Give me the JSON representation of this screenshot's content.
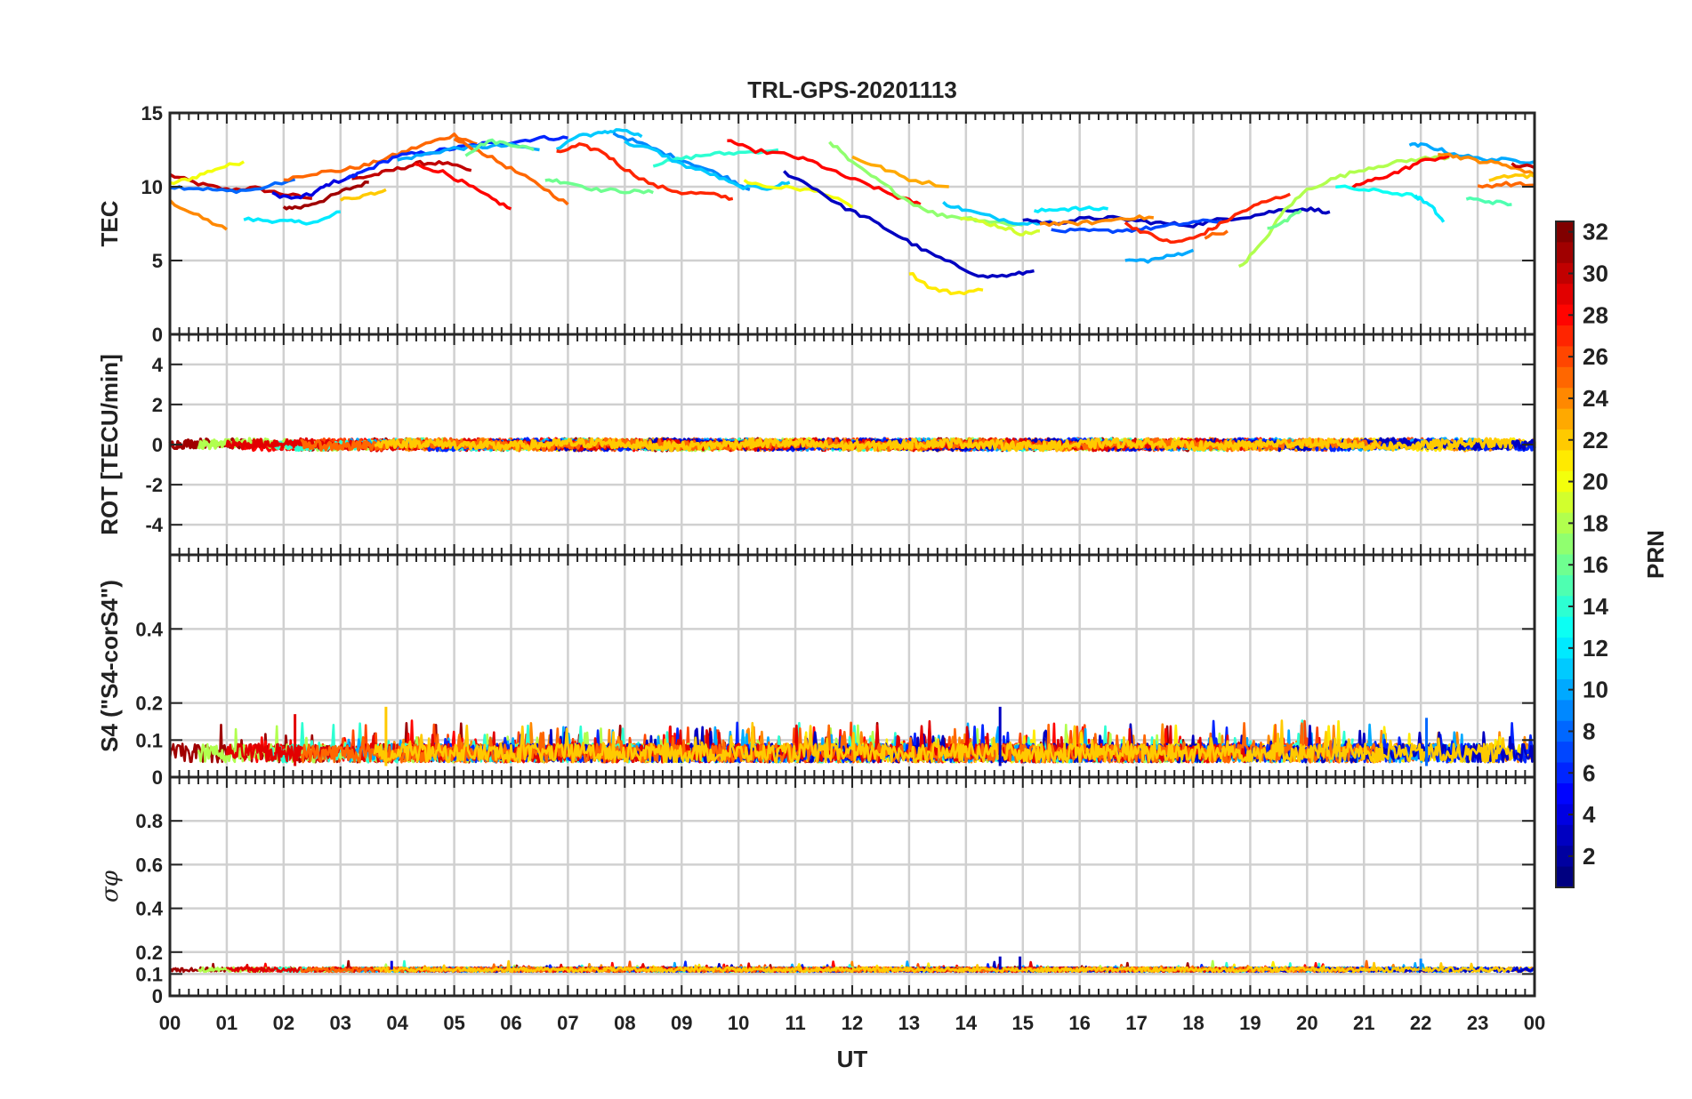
{
  "chart_data": {
    "type": "line",
    "title": "TRL-GPS-20201113",
    "xlabel": "UT",
    "x_tick_labels": [
      "00",
      "01",
      "02",
      "03",
      "04",
      "05",
      "06",
      "07",
      "08",
      "09",
      "10",
      "11",
      "12",
      "13",
      "14",
      "15",
      "16",
      "17",
      "18",
      "19",
      "20",
      "21",
      "22",
      "23",
      "00"
    ],
    "xlim": [
      0,
      24
    ],
    "colorbar": {
      "label": "PRN",
      "range": [
        1,
        32
      ],
      "tick_labels": [
        "2",
        "4",
        "6",
        "8",
        "10",
        "12",
        "14",
        "16",
        "18",
        "20",
        "22",
        "24",
        "26",
        "28",
        "30",
        "32"
      ]
    },
    "panels": [
      {
        "id": "tec",
        "ylabel": "TEC",
        "ylim": [
          0,
          15
        ],
        "y_ticks": [
          0,
          5,
          10,
          15
        ],
        "y_tick_labels": [
          "0",
          "5",
          "10",
          "15"
        ],
        "series": [
          {
            "prn": 30,
            "x": [
              0,
              0.5,
              1.0,
              1.5,
              2.0,
              2.5
            ],
            "y": [
              10.8,
              10.2,
              9.8,
              9.9,
              9.5,
              9.2
            ]
          },
          {
            "prn": 24,
            "x": [
              0,
              0.5,
              1.0
            ],
            "y": [
              9.0,
              8.0,
              7.1
            ]
          },
          {
            "prn": 20,
            "x": [
              0,
              0.4,
              0.8,
              1.3
            ],
            "y": [
              10.2,
              10.6,
              11.2,
              11.7
            ]
          },
          {
            "prn": 8,
            "x": [
              0,
              0.5,
              1.0,
              1.5,
              2.2
            ],
            "y": [
              10.0,
              9.9,
              9.7,
              9.8,
              10.5
            ]
          },
          {
            "prn": 4,
            "x": [
              1.8,
              2.2,
              2.5,
              2.8,
              3.3
            ],
            "y": [
              9.5,
              9.2,
              9.5,
              10.2,
              10.8
            ]
          },
          {
            "prn": 12,
            "x": [
              1.3,
              1.8,
              2.2,
              2.6,
              3.0
            ],
            "y": [
              7.8,
              7.7,
              7.6,
              7.6,
              8.3
            ]
          },
          {
            "prn": 31,
            "x": [
              2.0,
              2.3,
              2.7,
              3.1,
              3.5
            ],
            "y": [
              8.6,
              8.6,
              9.1,
              9.8,
              10.3
            ]
          },
          {
            "prn": 25,
            "x": [
              2.0,
              2.5,
              3.0,
              3.5,
              4.0,
              4.5,
              5.0,
              5.4
            ],
            "y": [
              10.5,
              10.9,
              11.1,
              11.5,
              12.2,
              12.9,
              13.5,
              12.9
            ]
          },
          {
            "prn": 30,
            "x": [
              3.2,
              3.6,
              4.0,
              4.4,
              4.8,
              5.3
            ],
            "y": [
              10.5,
              10.8,
              11.2,
              11.6,
              11.6,
              11.1
            ]
          },
          {
            "prn": 6,
            "x": [
              3.1,
              3.5,
              4.0,
              4.5,
              5.0,
              5.5,
              6.0,
              6.5,
              7.0
            ],
            "y": [
              10.5,
              11.2,
              12.1,
              12.3,
              12.6,
              12.9,
              13.0,
              13.3,
              13.3
            ]
          },
          {
            "prn": 10,
            "x": [
              4.0,
              4.5,
              5.0,
              5.5,
              6.0,
              6.5
            ],
            "y": [
              11.8,
              12.2,
              12.6,
              12.7,
              12.8,
              12.5
            ]
          },
          {
            "prn": 28,
            "x": [
              4.3,
              4.8,
              5.2,
              5.6,
              6.0
            ],
            "y": [
              11.5,
              11.0,
              10.2,
              9.3,
              8.5
            ]
          },
          {
            "prn": 25,
            "x": [
              5.0,
              5.5,
              6.0,
              6.5,
              7.0
            ],
            "y": [
              13.2,
              12.3,
              11.2,
              10.1,
              8.8
            ]
          },
          {
            "prn": 22,
            "x": [
              3.0,
              3.4,
              3.8
            ],
            "y": [
              9.1,
              9.4,
              9.8
            ]
          },
          {
            "prn": 16,
            "x": [
              5.2,
              5.6,
              6.0,
              6.4
            ],
            "y": [
              12.2,
              13.1,
              12.9,
              12.5
            ]
          },
          {
            "prn": 16,
            "x": [
              6.6,
              7.0,
              7.5,
              8.0,
              8.5
            ],
            "y": [
              10.5,
              10.3,
              9.8,
              9.7,
              9.6
            ]
          },
          {
            "prn": 11,
            "x": [
              6.8,
              7.2,
              7.6,
              7.9,
              8.3
            ],
            "y": [
              12.6,
              13.5,
              13.6,
              13.9,
              13.4
            ]
          },
          {
            "prn": 27,
            "x": [
              6.8,
              7.2,
              7.6,
              8.0,
              8.5,
              9.0,
              9.5,
              9.9
            ],
            "y": [
              12.3,
              12.8,
              12.4,
              11.2,
              10.1,
              9.6,
              9.5,
              9.2
            ]
          },
          {
            "prn": 9,
            "x": [
              7.8,
              8.3,
              8.8,
              9.3,
              9.8,
              10.2
            ],
            "y": [
              13.6,
              12.9,
              12.1,
              11.4,
              10.6,
              9.8
            ]
          },
          {
            "prn": 14,
            "x": [
              8.5,
              9.0,
              9.5,
              10.0,
              10.7
            ],
            "y": [
              11.5,
              11.9,
              12.2,
              12.3,
              12.5
            ]
          },
          {
            "prn": 11,
            "x": [
              8.0,
              8.5,
              9.0,
              9.5,
              10.0,
              10.5,
              10.9
            ],
            "y": [
              13.0,
              12.5,
              11.5,
              10.9,
              10.0,
              9.9,
              10.3
            ]
          },
          {
            "prn": 20,
            "x": [
              10.1,
              10.5,
              11.0,
              11.5,
              12.0
            ],
            "y": [
              10.4,
              10.0,
              9.9,
              9.6,
              8.6
            ]
          },
          {
            "prn": 28,
            "x": [
              9.8,
              10.2,
              10.8,
              11.3,
              11.8,
              12.3,
              12.8,
              13.2
            ],
            "y": [
              13.2,
              12.5,
              12.2,
              11.7,
              10.8,
              10.1,
              9.3,
              8.8
            ]
          },
          {
            "prn": 3,
            "x": [
              10.8,
              11.3,
              11.8,
              12.3,
              12.8,
              13.3,
              13.8,
              14.3,
              14.8,
              15.2
            ],
            "y": [
              11.0,
              10.0,
              8.7,
              7.8,
              6.7,
              5.6,
              4.7,
              3.9,
              4.0,
              4.3
            ]
          },
          {
            "prn": 17,
            "x": [
              11.6,
              12.0,
              12.5,
              13.0,
              13.5,
              14.0,
              14.5,
              15.0
            ],
            "y": [
              13.1,
              11.6,
              10.3,
              9.0,
              8.1,
              7.9,
              7.6,
              7.4
            ]
          },
          {
            "prn": 23,
            "x": [
              12.0,
              12.5,
              13.0,
              13.7
            ],
            "y": [
              12.0,
              11.3,
              10.5,
              10.0
            ]
          },
          {
            "prn": 21,
            "x": [
              13.0,
              13.4,
              13.8,
              14.3
            ],
            "y": [
              4.2,
              3.1,
              2.8,
              3.0
            ]
          },
          {
            "prn": 11,
            "x": [
              13.6,
              14.0,
              14.5,
              15.0,
              15.5
            ],
            "y": [
              8.9,
              8.4,
              7.9,
              7.5,
              7.7
            ]
          },
          {
            "prn": 19,
            "x": [
              13.9,
              14.3,
              14.7,
              15.0,
              15.3
            ],
            "y": [
              7.9,
              7.6,
              7.2,
              6.8,
              7.0
            ]
          },
          {
            "prn": 12,
            "x": [
              15.2,
              15.6,
              16.0,
              16.5
            ],
            "y": [
              8.3,
              8.5,
              8.5,
              8.5
            ]
          },
          {
            "prn": 3,
            "x": [
              15.0,
              15.5,
              16.0,
              16.5,
              17.0,
              17.5,
              18.0,
              18.5,
              19.0,
              19.5,
              20.0,
              20.4
            ],
            "y": [
              7.8,
              7.5,
              7.8,
              7.9,
              7.7,
              7.5,
              7.4,
              7.8,
              8.0,
              8.4,
              8.5,
              8.3
            ]
          },
          {
            "prn": 7,
            "x": [
              15.5,
              16.0,
              16.5,
              17.0,
              17.5,
              18.0,
              18.5
            ],
            "y": [
              7.0,
              7.0,
              7.0,
              7.1,
              7.3,
              7.6,
              7.7
            ]
          },
          {
            "prn": 24,
            "x": [
              15.3,
              15.8,
              16.3,
              16.8,
              17.3
            ],
            "y": [
              7.5,
              7.5,
              7.6,
              7.9,
              7.9
            ]
          },
          {
            "prn": 10,
            "x": [
              16.8,
              17.2,
              17.6,
              18.0
            ],
            "y": [
              5.0,
              5.0,
              5.3,
              5.7
            ]
          },
          {
            "prn": 27,
            "x": [
              16.8,
              17.2,
              17.6,
              18.0,
              18.4,
              18.8,
              19.2,
              19.7
            ],
            "y": [
              7.5,
              6.8,
              6.2,
              6.5,
              7.3,
              8.2,
              8.9,
              9.5
            ]
          },
          {
            "prn": 25,
            "x": [
              18.2,
              18.6
            ],
            "y": [
              6.6,
              7.0
            ]
          },
          {
            "prn": 18,
            "x": [
              18.8,
              19.2,
              19.6,
              20.0,
              20.5,
              21.0,
              21.5,
              22.0,
              22.5
            ],
            "y": [
              4.5,
              6.1,
              8.4,
              9.8,
              10.6,
              11.2,
              11.6,
              11.9,
              12.0
            ]
          },
          {
            "prn": 16,
            "x": [
              19.3,
              19.6,
              19.9
            ],
            "y": [
              7.2,
              7.6,
              8.4
            ]
          },
          {
            "prn": 28,
            "x": [
              20.8,
              21.2,
              21.6,
              22.0,
              22.5
            ],
            "y": [
              10.0,
              10.5,
              11.0,
              11.7,
              12.1
            ]
          },
          {
            "prn": 13,
            "x": [
              20.5,
              21.0,
              21.5,
              22.0
            ],
            "y": [
              10.0,
              9.8,
              9.6,
              9.3
            ]
          },
          {
            "prn": 10,
            "x": [
              21.8,
              22.1,
              22.5,
              23.0,
              23.5,
              24.0
            ],
            "y": [
              12.8,
              12.8,
              12.3,
              11.9,
              11.8,
              11.7
            ]
          },
          {
            "prn": 24,
            "x": [
              22.3,
              22.7,
              23.1,
              23.5,
              24.0
            ],
            "y": [
              12.3,
              12.0,
              11.7,
              11.5,
              10.8
            ]
          },
          {
            "prn": 22,
            "x": [
              23.2,
              23.6,
              24.0
            ],
            "y": [
              10.5,
              10.8,
              10.7
            ]
          },
          {
            "prn": 25,
            "x": [
              23.0,
              23.5,
              24.0
            ],
            "y": [
              10.0,
              10.2,
              10.1
            ]
          },
          {
            "prn": 12,
            "x": [
              21.9,
              22.2,
              22.4
            ],
            "y": [
              9.4,
              8.6,
              7.6
            ]
          },
          {
            "prn": 15,
            "x": [
              22.8,
              23.2,
              23.6
            ],
            "y": [
              9.2,
              9.0,
              8.8
            ]
          },
          {
            "prn": 30,
            "x": [
              23.6,
              24.0
            ],
            "y": [
              11.5,
              11.3
            ]
          }
        ]
      },
      {
        "id": "rot",
        "ylabel": "ROT [TECU/min]",
        "ylim": [
          -5.5,
          5.5
        ],
        "y_ticks": [
          -4,
          -2,
          0,
          2,
          4
        ],
        "y_tick_labels": [
          "-4",
          "-2",
          "0",
          "2",
          "4"
        ],
        "series_summary": "ROT values for all PRNs fluctuate near 0 (within about ±0.3 TECU/min)"
      },
      {
        "id": "s4",
        "ylabel": "S4 (\"S4-corS4\")",
        "ylim": [
          0,
          0.6
        ],
        "y_ticks": [
          0,
          0.1,
          0.2,
          0.4
        ],
        "y_tick_labels": [
          "0",
          "0.1",
          "0.2",
          "0.4"
        ],
        "series_summary": "S4 values mostly between 0.02 and 0.12 with spikes up to about 0.19 near 14.6 UT"
      },
      {
        "id": "sigma-phi",
        "ylabel": "σφ",
        "ylim": [
          0,
          1.0
        ],
        "y_ticks": [
          0,
          0.1,
          0.2,
          0.4,
          0.6,
          0.8
        ],
        "y_tick_labels": [
          "0",
          "0.1",
          "0.2",
          "0.4",
          "0.6",
          "0.8"
        ],
        "series_summary": "Phase scintillation values mostly between 0.11 and 0.14 with spikes up to about 0.18 near 14.6-14.9 UT"
      }
    ]
  }
}
